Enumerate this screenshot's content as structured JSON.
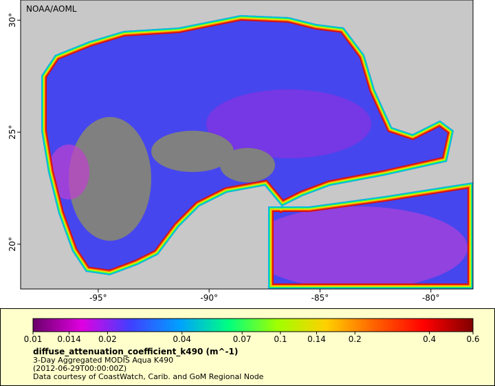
{
  "map": {
    "source": "NOAA/AOML",
    "lon_range": [
      -98.5,
      -78.1
    ],
    "lat_range": [
      18.0,
      30.9
    ],
    "lon_ticks": [
      {
        "value": -95,
        "label": "-95°"
      },
      {
        "value": -90,
        "label": "-90°"
      },
      {
        "value": -85,
        "label": "-85°"
      },
      {
        "value": -80,
        "label": "-80°"
      }
    ],
    "lat_ticks": [
      {
        "value": 30,
        "label": "30°"
      },
      {
        "value": 25,
        "label": "25°"
      },
      {
        "value": 20,
        "label": "20°"
      }
    ]
  },
  "legend": {
    "variable": "diffuse_attenuation_coefficient_k490 (m^-1)",
    "description": "3-Day Aggregated MODIS Aqua K490",
    "time": "(2012-06-29T00:00:00Z)",
    "credit": "Data courtesy of CoastWatch, Carib. and GoM Regional Node",
    "scale": "log",
    "range": [
      0.01,
      0.6
    ],
    "ticks": [
      0.01,
      0.014,
      0.02,
      0.04,
      0.07,
      0.1,
      0.14,
      0.2,
      0.4,
      0.6
    ],
    "colors": [
      "#6a006a",
      "#e000e0",
      "#4040ff",
      "#00a0ff",
      "#00ff80",
      "#a0ff00",
      "#ffd000",
      "#ff6000",
      "#ff0000",
      "#800000"
    ]
  }
}
